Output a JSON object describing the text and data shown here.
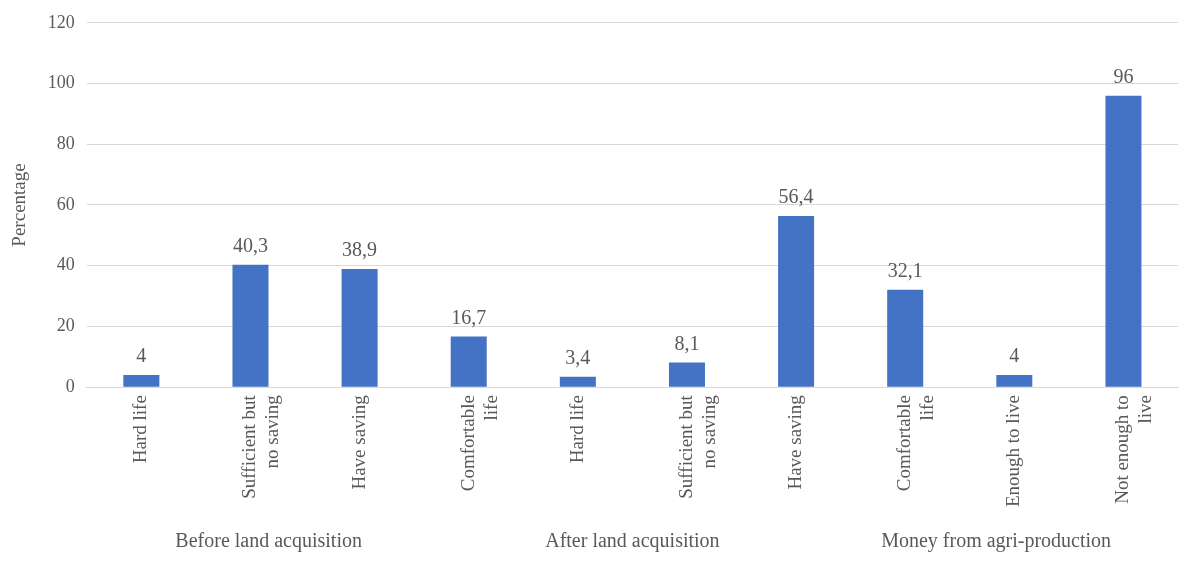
{
  "chart_data": {
    "type": "bar",
    "ylabel": "Percentage",
    "categories": [
      "Hard life",
      "Sufficient but no saving",
      "Have saving",
      "Comfortable life",
      "Hard life",
      "Sufficient but no saving",
      "Have saving",
      "Comfortable life",
      "Enough to live",
      "Not enough to live"
    ],
    "values": [
      4,
      40.3,
      38.9,
      16.7,
      3.4,
      8.1,
      56.4,
      32.1,
      4,
      96
    ],
    "value_labels": [
      "4",
      "40,3",
      "38,9",
      "16,7",
      "3,4",
      "8,1",
      "56,4",
      "32,1",
      "4",
      "96"
    ],
    "color": "#4472c4",
    "ylim": [
      0,
      120
    ],
    "yticks": [
      0,
      20,
      40,
      60,
      80,
      100,
      120
    ],
    "grid": "y",
    "legend": false,
    "annotations": [
      "Before land acquisition",
      "After land acquisition",
      "Money from agri-production"
    ]
  }
}
